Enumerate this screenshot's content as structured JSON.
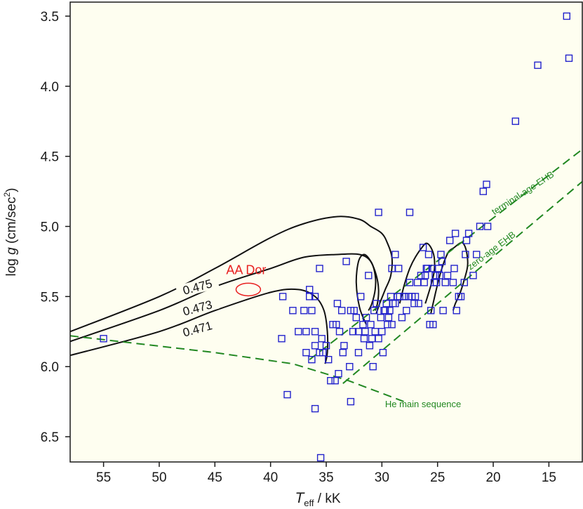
{
  "chart_data": {
    "type": "scatter",
    "title": "",
    "xlabel": {
      "main": "T",
      "sub": "eff",
      "rest": " / kK"
    },
    "ylabel": {
      "pre": "log ",
      "ital": "g",
      "unit": " (cm/sec",
      "sup": "2",
      "close": ")"
    },
    "xlim": [
      58,
      12
    ],
    "ylim": [
      3.4,
      6.68
    ],
    "x_ticks": [
      55,
      50,
      45,
      40,
      35,
      30,
      25,
      20,
      15
    ],
    "x_tick_labels": [
      "55",
      "50",
      "45",
      "40",
      "35",
      "30",
      "25",
      "20",
      "15"
    ],
    "y_ticks": [
      3.5,
      4.0,
      4.5,
      5.0,
      5.5,
      6.0,
      6.5
    ],
    "y_tick_labels": [
      "3.5",
      "4.0",
      "4.5",
      "5.0",
      "5.5",
      "6.0",
      "6.5"
    ],
    "background": "#fefef0",
    "colors": {
      "stars": "#2222cc",
      "tracks": "#111111",
      "ehb": "#228822",
      "highlight": "#e82020"
    },
    "points": [
      [
        55,
        5.8
      ],
      [
        39,
        5.8
      ],
      [
        38.9,
        5.5
      ],
      [
        38.5,
        6.2
      ],
      [
        38,
        5.6
      ],
      [
        37.5,
        5.75
      ],
      [
        37,
        5.6
      ],
      [
        36.8,
        5.75
      ],
      [
        36.8,
        5.9
      ],
      [
        36.5,
        5.45
      ],
      [
        36.5,
        5.5
      ],
      [
        36.3,
        5.6
      ],
      [
        36.3,
        5.95
      ],
      [
        36,
        5.5
      ],
      [
        36,
        5.75
      ],
      [
        36,
        5.85
      ],
      [
        36,
        6.3
      ],
      [
        35.6,
        5.3
      ],
      [
        35.6,
        5.9
      ],
      [
        35.5,
        6.65
      ],
      [
        35.4,
        5.8
      ],
      [
        35.3,
        5.9
      ],
      [
        35,
        5.85
      ],
      [
        34.8,
        5.95
      ],
      [
        34.6,
        6.1
      ],
      [
        34.4,
        5.7
      ],
      [
        34.2,
        6.1
      ],
      [
        34.1,
        5.7
      ],
      [
        34,
        5.55
      ],
      [
        33.9,
        6.05
      ],
      [
        33.8,
        5.75
      ],
      [
        33.6,
        5.6
      ],
      [
        33.5,
        5.9
      ],
      [
        33.4,
        5.85
      ],
      [
        33.2,
        5.25
      ],
      [
        32.9,
        6.0
      ],
      [
        32.8,
        5.6
      ],
      [
        32.8,
        6.25
      ],
      [
        32.6,
        5.75
      ],
      [
        32.5,
        5.6
      ],
      [
        32.3,
        5.65
      ],
      [
        32.1,
        5.75
      ],
      [
        32.1,
        5.9
      ],
      [
        31.9,
        5.5
      ],
      [
        31.7,
        5.7
      ],
      [
        31.6,
        5.8
      ],
      [
        31.5,
        5.75
      ],
      [
        31.4,
        5.65
      ],
      [
        31.2,
        5.35
      ],
      [
        31.1,
        5.85
      ],
      [
        31,
        5.7
      ],
      [
        30.9,
        5.8
      ],
      [
        30.8,
        6.0
      ],
      [
        30.7,
        5.6
      ],
      [
        30.6,
        5.75
      ],
      [
        30.5,
        5.55
      ],
      [
        30.3,
        5.8
      ],
      [
        30.1,
        5.65
      ],
      [
        30,
        5.75
      ],
      [
        29.9,
        5.9
      ],
      [
        29.8,
        5.6
      ],
      [
        29.7,
        5.6
      ],
      [
        29.6,
        5.55
      ],
      [
        29.5,
        5.7
      ],
      [
        29.4,
        5.65
      ],
      [
        29.3,
        5.6
      ],
      [
        29.2,
        5.5
      ],
      [
        29.1,
        5.7
      ],
      [
        29,
        5.55
      ],
      [
        28.8,
        5.55
      ],
      [
        28.6,
        5.5
      ],
      [
        28.4,
        5.5
      ],
      [
        28.2,
        5.65
      ],
      [
        28,
        5.5
      ],
      [
        28,
        5.5
      ],
      [
        27.8,
        5.6
      ],
      [
        27.6,
        5.5
      ],
      [
        27.5,
        5.4
      ],
      [
        27.5,
        4.9
      ],
      [
        27.3,
        5.5
      ],
      [
        27.1,
        5.55
      ],
      [
        27,
        5.5
      ],
      [
        26.8,
        5.4
      ],
      [
        26.7,
        5.55
      ],
      [
        26.5,
        5.35
      ],
      [
        26.3,
        5.15
      ],
      [
        26.2,
        5.4
      ],
      [
        26.1,
        5.35
      ],
      [
        26,
        5.3
      ],
      [
        25.9,
        5.3
      ],
      [
        25.8,
        5.2
      ],
      [
        25.7,
        5.7
      ],
      [
        25.6,
        5.6
      ],
      [
        25.5,
        5.3
      ],
      [
        25.4,
        5.7
      ],
      [
        25.3,
        5.4
      ],
      [
        25.2,
        5.35
      ],
      [
        25.1,
        5.4
      ],
      [
        24.9,
        5.3
      ],
      [
        24.8,
        5.35
      ],
      [
        24.6,
        5.25
      ],
      [
        24.3,
        5.4
      ],
      [
        24.1,
        5.35
      ],
      [
        23.6,
        5.4
      ],
      [
        23.5,
        5.3
      ],
      [
        23.3,
        5.6
      ],
      [
        23.1,
        5.5
      ],
      [
        22.9,
        5.5
      ],
      [
        22.6,
        5.4
      ],
      [
        22.5,
        5.2
      ],
      [
        22.4,
        5.1
      ],
      [
        22.2,
        5.05
      ],
      [
        21.8,
        5.35
      ],
      [
        21.5,
        5.2
      ],
      [
        21.2,
        5.0
      ],
      [
        20.9,
        4.75
      ],
      [
        20.6,
        4.7
      ],
      [
        20.5,
        5.0
      ],
      [
        18,
        4.25
      ],
      [
        16,
        3.85
      ],
      [
        13.4,
        3.5
      ],
      [
        13.2,
        3.8
      ],
      [
        30.3,
        4.9
      ],
      [
        28.8,
        5.2
      ],
      [
        28.5,
        5.3
      ],
      [
        29.1,
        5.3
      ],
      [
        24.5,
        5.6
      ],
      [
        23.9,
        5.1
      ],
      [
        24.7,
        5.2
      ],
      [
        23.4,
        5.05
      ]
    ],
    "tracks": [
      {
        "name": "0.475",
        "label": "0.475",
        "points": [
          [
            58,
            5.75
          ],
          [
            50,
            5.5
          ],
          [
            45,
            5.3
          ],
          [
            40,
            5.08
          ],
          [
            37,
            4.98
          ],
          [
            34,
            4.93
          ],
          [
            32,
            4.95
          ],
          [
            31,
            5.0
          ],
          [
            30,
            5.05
          ],
          [
            29.5,
            5.12
          ],
          [
            29.1,
            5.22
          ],
          [
            29.2,
            5.35
          ],
          [
            29.7,
            5.45
          ],
          [
            30.2,
            5.55
          ],
          [
            30.5,
            5.62
          ]
        ]
      },
      {
        "name": "0.473",
        "label": "0.473",
        "points": [
          [
            58,
            5.82
          ],
          [
            50,
            5.6
          ],
          [
            45,
            5.43
          ],
          [
            40,
            5.3
          ],
          [
            37,
            5.22
          ],
          [
            34,
            5.2
          ],
          [
            32,
            5.2
          ],
          [
            31,
            5.25
          ],
          [
            30.6,
            5.35
          ],
          [
            30.6,
            5.45
          ],
          [
            30.9,
            5.55
          ],
          [
            31.2,
            5.6
          ]
        ]
      },
      {
        "name": "0.471",
        "label": "0.471",
        "points": [
          [
            58,
            5.92
          ],
          [
            50,
            5.75
          ],
          [
            45,
            5.6
          ],
          [
            40,
            5.47
          ],
          [
            37.5,
            5.45
          ],
          [
            36,
            5.5
          ],
          [
            35.2,
            5.6
          ],
          [
            34.9,
            5.75
          ],
          [
            34.9,
            5.9
          ],
          [
            35.1,
            5.98
          ]
        ]
      }
    ],
    "hook_tracks": [
      [
        [
          31.4,
          5.7
        ],
        [
          32,
          5.58
        ],
        [
          32.3,
          5.4
        ],
        [
          32.1,
          5.25
        ],
        [
          31.6,
          5.2
        ],
        [
          31,
          5.25
        ],
        [
          30.5,
          5.35
        ],
        [
          30.3,
          5.45
        ],
        [
          30.4,
          5.55
        ],
        [
          30.6,
          5.6
        ]
      ],
      [
        [
          28.4,
          5.55
        ],
        [
          28,
          5.42
        ],
        [
          27.5,
          5.3
        ],
        [
          27,
          5.22
        ],
        [
          26.4,
          5.15
        ],
        [
          26,
          5.12
        ],
        [
          25.6,
          5.15
        ],
        [
          25.3,
          5.22
        ],
        [
          25.3,
          5.32
        ],
        [
          25.6,
          5.42
        ],
        [
          25.9,
          5.5
        ],
        [
          26.1,
          5.55
        ]
      ],
      [
        [
          25.6,
          5.62
        ],
        [
          25.2,
          5.48
        ],
        [
          24.8,
          5.35
        ],
        [
          24.4,
          5.25
        ],
        [
          24,
          5.18
        ],
        [
          23.5,
          5.15
        ],
        [
          23,
          5.12
        ],
        [
          22.7,
          5.12
        ],
        [
          22.4,
          5.18
        ],
        [
          22.3,
          5.28
        ],
        [
          22.6,
          5.38
        ],
        [
          23,
          5.48
        ],
        [
          23.4,
          5.55
        ],
        [
          23.6,
          5.6
        ]
      ]
    ],
    "ehb_lines": [
      {
        "name": "terminal-age EHB",
        "points": [
          [
            36.5,
            5.95
          ],
          [
            12,
            4.45
          ]
        ]
      },
      {
        "name": "zero-age EHB",
        "points": [
          [
            33.5,
            6.12
          ],
          [
            12,
            4.68
          ]
        ]
      },
      {
        "name": "He main sequence",
        "points": [
          [
            58,
            5.78
          ],
          [
            45,
            5.9
          ],
          [
            38,
            5.98
          ],
          [
            33,
            6.1
          ],
          [
            28,
            6.25
          ]
        ]
      }
    ],
    "aa_dor": {
      "label": "AA Dor",
      "x": 42,
      "y": 5.45,
      "rx": 1.1,
      "ry": 0.045
    },
    "annotations": {
      "he_ms": "He main sequence",
      "terminal": "terminal-age EHB",
      "zero": "zero-age EHB"
    }
  }
}
